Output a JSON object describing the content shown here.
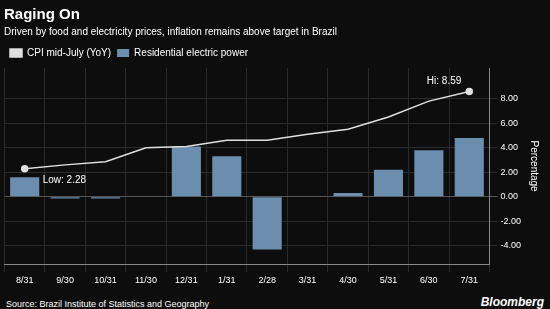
{
  "chart_data": {
    "type": "bar",
    "title": "Raging On",
    "subtitle": "Driven by food and electricity prices, inflation remains above target in Brazil",
    "source": "Source: Brazil Institute of Statistics and Geography",
    "credit": "Bloomberg",
    "categories": [
      "8/31",
      "9/30",
      "10/31",
      "11/30",
      "12/31",
      "1/31",
      "2/28",
      "3/31",
      "4/30",
      "5/31",
      "6/30",
      "7/31"
    ],
    "series": [
      {
        "name": "Residential electric power",
        "type": "bar",
        "color": "#6b8dae",
        "values": [
          1.6,
          -0.15,
          -0.15,
          0.05,
          4.1,
          3.3,
          -4.3,
          0.05,
          0.3,
          2.2,
          3.8,
          4.8
        ]
      },
      {
        "name": "CPI mid-July (YoY)",
        "type": "line",
        "color": "#e0e0e0",
        "marker": "endpoints",
        "values": [
          2.28,
          2.6,
          2.85,
          4.0,
          4.1,
          4.6,
          4.6,
          5.1,
          5.5,
          6.5,
          7.8,
          8.59
        ]
      }
    ],
    "ylabel": "Percentage",
    "ylim": [
      -5.5,
      10.5
    ],
    "yticks": [
      {
        "value": -4.0,
        "label": "-4.00"
      },
      {
        "value": -2.0,
        "label": "-2.00"
      },
      {
        "value": 0.0,
        "label": "0.00"
      },
      {
        "value": 2.0,
        "label": "2.00"
      },
      {
        "value": 4.0,
        "label": "4.00"
      },
      {
        "value": 6.0,
        "label": "6.00"
      },
      {
        "value": 8.0,
        "label": "8.00"
      }
    ],
    "grid": true,
    "legend": "upper left",
    "annotations": [
      {
        "text": "Low: 2.28",
        "category": "8/31",
        "value": 2.28
      },
      {
        "text": "Hi: 8.59",
        "category": "7/31",
        "value": 8.59
      }
    ]
  }
}
